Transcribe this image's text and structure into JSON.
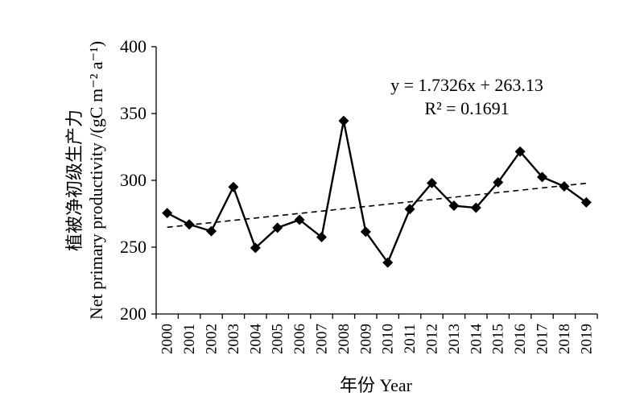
{
  "chart_data": {
    "type": "line",
    "title": "",
    "xlabel": "年份 Year",
    "ylabel_cn": "植被净初级生产力",
    "ylabel_en": "Net primary productivity /(gC m⁻² a⁻¹)",
    "ylim": [
      200,
      400
    ],
    "yticks": [
      200,
      250,
      300,
      350,
      400
    ],
    "grid": false,
    "legend": "none",
    "categories": [
      "2000",
      "2001",
      "2002",
      "2003",
      "2004",
      "2005",
      "2006",
      "2007",
      "2008",
      "2009",
      "2010",
      "2011",
      "2012",
      "2013",
      "2014",
      "2015",
      "2016",
      "2017",
      "2018",
      "2019"
    ],
    "series": [
      {
        "values": [
          275.5,
          267,
          262,
          295,
          249.5,
          264.5,
          270.5,
          257.5,
          344.5,
          261.5,
          238.5,
          278.5,
          298,
          281,
          279.5,
          298.5,
          321.5,
          302.5,
          295.5,
          283.5
        ]
      }
    ],
    "trendline": {
      "slope": 1.7326,
      "intercept": 263.13,
      "style": "dashed"
    },
    "annotations": {
      "equation": "y = 1.7326x + 263.13",
      "r2": "R² = 0.1691"
    },
    "colors": {
      "line": "#000000",
      "marker": "#000000",
      "trend": "#000000"
    }
  }
}
